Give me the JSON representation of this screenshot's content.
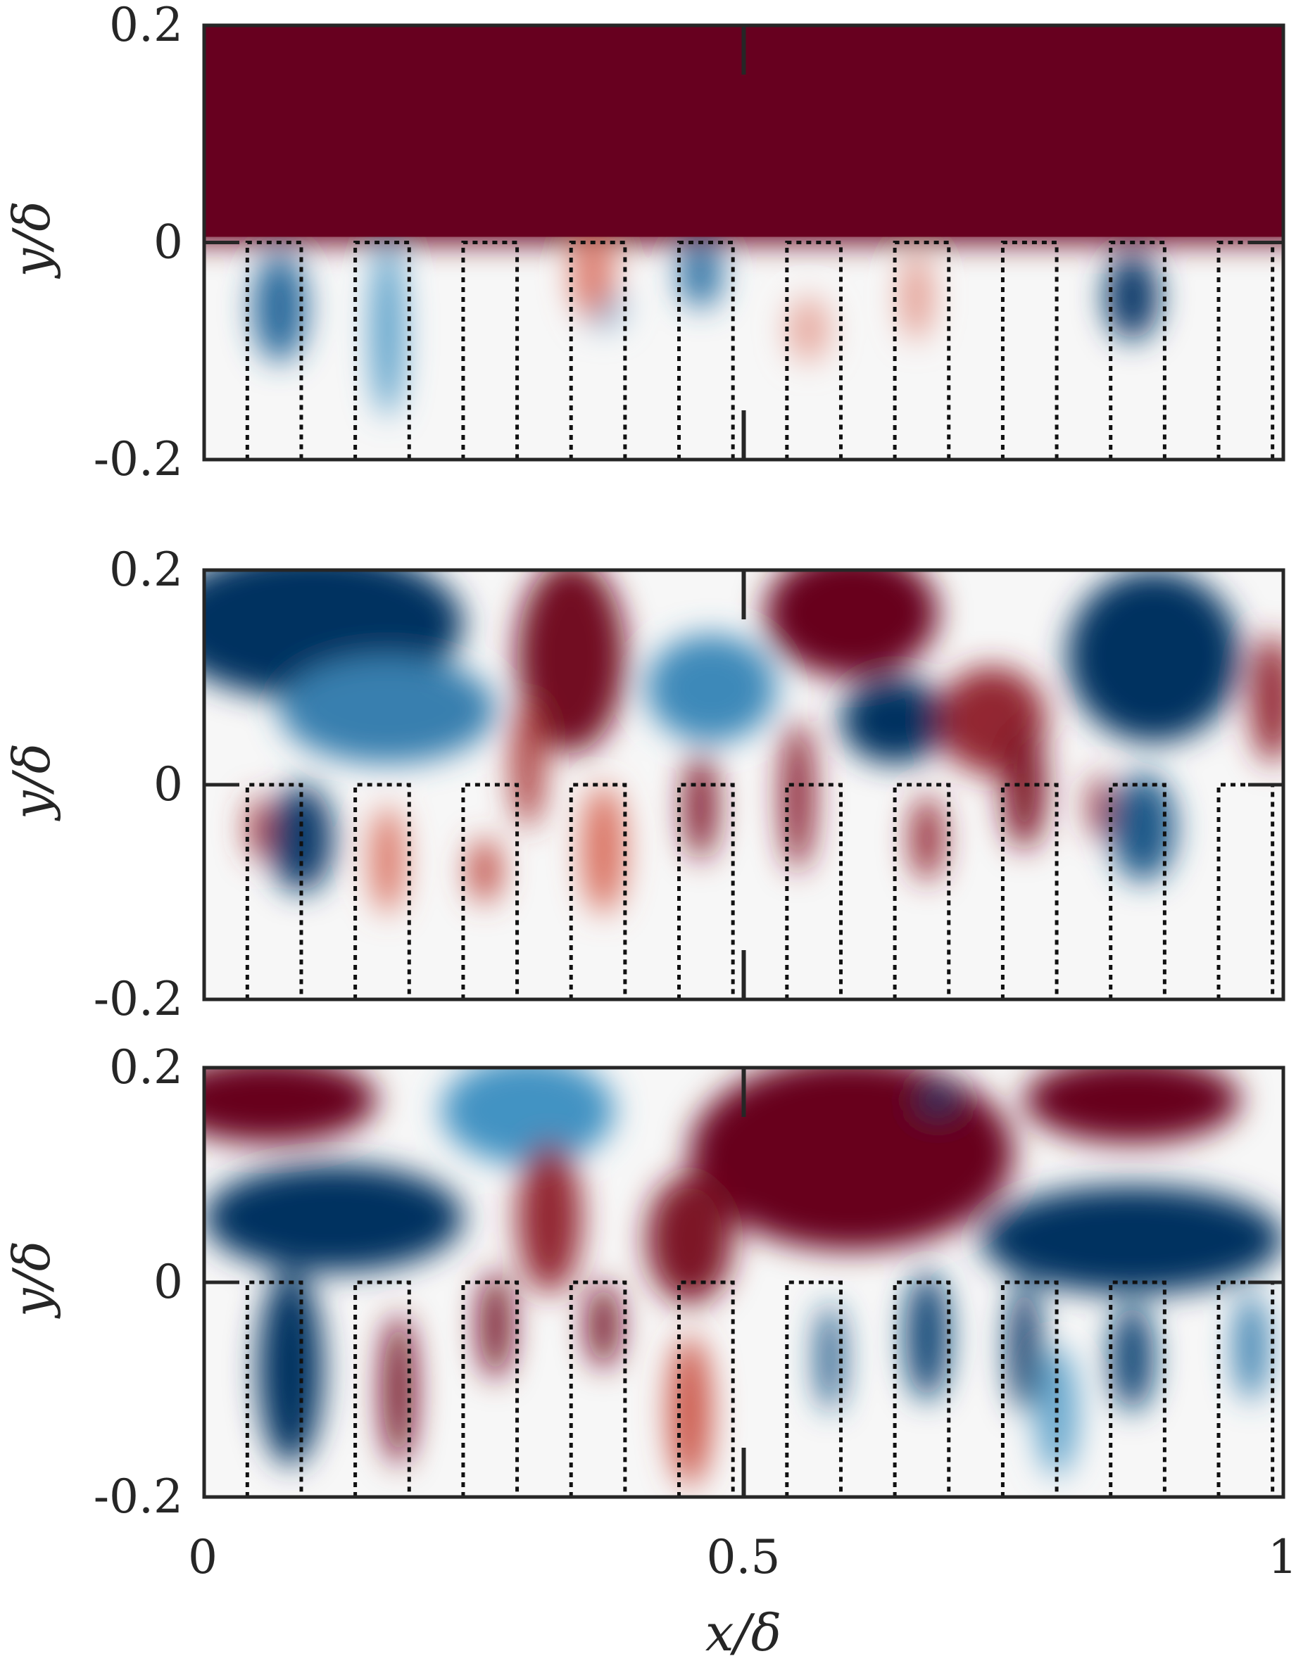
{
  "chart_data": [
    {
      "type": "heatmap",
      "panel": "top",
      "ylabel": "y/δ",
      "xlabel": "",
      "xlim": [
        0,
        1
      ],
      "ylim": [
        -0.2,
        0.2
      ],
      "y_ticks": [
        "0.2",
        "0",
        "-0.2"
      ],
      "x_ticks": [],
      "colormap": "diverging red-blue",
      "field_summary": "uniform strong positive above y=0; near-zero inside grooves with weak negative pockets at x≈0.07, 0.17, 0.46, 0.86",
      "features": [
        {
          "x": 0.0,
          "y": 0.1,
          "rx": 1.0,
          "ry": 0.1,
          "value": 1
        },
        {
          "x": 0.07,
          "y": -0.06,
          "rx": 0.025,
          "ry": 0.05,
          "value": -0.7
        },
        {
          "x": 0.17,
          "y": -0.08,
          "rx": 0.015,
          "ry": 0.08,
          "value": -0.45
        },
        {
          "x": 0.46,
          "y": -0.03,
          "rx": 0.02,
          "ry": 0.03,
          "value": -0.65
        },
        {
          "x": 0.86,
          "y": -0.05,
          "rx": 0.025,
          "ry": 0.04,
          "value": -0.95
        },
        {
          "x": 0.37,
          "y": -0.06,
          "rx": 0.02,
          "ry": 0.02,
          "value": -0.3
        },
        {
          "x": 0.36,
          "y": -0.03,
          "rx": 0.02,
          "ry": 0.04,
          "value": 0.4
        },
        {
          "x": 0.56,
          "y": -0.08,
          "rx": 0.02,
          "ry": 0.03,
          "value": 0.25
        },
        {
          "x": 0.66,
          "y": -0.05,
          "rx": 0.015,
          "ry": 0.04,
          "value": 0.3
        }
      ]
    },
    {
      "type": "heatmap",
      "panel": "middle",
      "ylabel": "y/δ",
      "xlabel": "",
      "xlim": [
        0,
        1
      ],
      "ylim": [
        -0.2,
        0.2
      ],
      "y_ticks": [
        "0.2",
        "0",
        "-0.2"
      ],
      "x_ticks": [],
      "colormap": "diverging red-blue",
      "field_summary": "alternating large-scale positive/negative regions above y=0 with penetrating plumes into the grooves",
      "features": [
        {
          "x": 0.1,
          "y": 0.15,
          "rx": 0.14,
          "ry": 0.07,
          "value": -1
        },
        {
          "x": 0.17,
          "y": 0.07,
          "rx": 0.1,
          "ry": 0.05,
          "value": -0.6
        },
        {
          "x": 0.09,
          "y": -0.05,
          "rx": 0.03,
          "ry": 0.05,
          "value": -0.95
        },
        {
          "x": 0.34,
          "y": 0.12,
          "rx": 0.05,
          "ry": 0.09,
          "value": 0.95
        },
        {
          "x": 0.47,
          "y": 0.09,
          "rx": 0.06,
          "ry": 0.05,
          "value": -0.55
        },
        {
          "x": 0.6,
          "y": 0.16,
          "rx": 0.08,
          "ry": 0.06,
          "value": 1
        },
        {
          "x": 0.64,
          "y": 0.06,
          "rx": 0.05,
          "ry": 0.04,
          "value": -1
        },
        {
          "x": 0.73,
          "y": 0.06,
          "rx": 0.05,
          "ry": 0.05,
          "value": 0.8
        },
        {
          "x": 0.88,
          "y": 0.12,
          "rx": 0.08,
          "ry": 0.08,
          "value": -1
        },
        {
          "x": 0.87,
          "y": -0.04,
          "rx": 0.03,
          "ry": 0.05,
          "value": -0.8
        },
        {
          "x": 0.99,
          "y": 0.08,
          "rx": 0.02,
          "ry": 0.06,
          "value": 0.8
        },
        {
          "x": 0.46,
          "y": -0.02,
          "rx": 0.015,
          "ry": 0.05,
          "value": 0.9
        },
        {
          "x": 0.55,
          "y": -0.01,
          "rx": 0.015,
          "ry": 0.07,
          "value": 0.85
        },
        {
          "x": 0.67,
          "y": -0.05,
          "rx": 0.015,
          "ry": 0.04,
          "value": 0.8
        },
        {
          "x": 0.76,
          "y": 0.0,
          "rx": 0.02,
          "ry": 0.06,
          "value": 0.9
        },
        {
          "x": 0.83,
          "y": -0.02,
          "rx": 0.01,
          "ry": 0.03,
          "value": 0.8
        },
        {
          "x": 0.05,
          "y": -0.04,
          "rx": 0.01,
          "ry": 0.03,
          "value": 0.7
        },
        {
          "x": 0.26,
          "y": -0.08,
          "rx": 0.015,
          "ry": 0.03,
          "value": 0.6
        },
        {
          "x": 0.37,
          "y": -0.06,
          "rx": 0.02,
          "ry": 0.06,
          "value": 0.45
        },
        {
          "x": 0.3,
          "y": 0.02,
          "rx": 0.015,
          "ry": 0.06,
          "value": 0.7
        },
        {
          "x": 0.17,
          "y": -0.07,
          "rx": 0.015,
          "ry": 0.05,
          "value": 0.45
        }
      ]
    },
    {
      "type": "heatmap",
      "panel": "bottom",
      "ylabel": "y/δ",
      "xlabel": "x/δ",
      "xlim": [
        0,
        1
      ],
      "ylim": [
        -0.2,
        0.2
      ],
      "y_ticks": [
        "0.2",
        "0",
        "-0.2"
      ],
      "x_ticks": [
        "0",
        "0.5",
        "1"
      ],
      "colormap": "diverging red-blue",
      "field_summary": "large negative band near y≈0.05 and large positive region at top, with alternating plumes penetrating the grooves",
      "features": [
        {
          "x": 0.06,
          "y": 0.17,
          "rx": 0.1,
          "ry": 0.04,
          "value": 1
        },
        {
          "x": 0.12,
          "y": 0.06,
          "rx": 0.12,
          "ry": 0.05,
          "value": -1
        },
        {
          "x": 0.3,
          "y": 0.16,
          "rx": 0.08,
          "ry": 0.05,
          "value": -0.5
        },
        {
          "x": 0.6,
          "y": 0.12,
          "rx": 0.15,
          "ry": 0.09,
          "value": 1
        },
        {
          "x": 0.68,
          "y": 0.17,
          "rx": 0.02,
          "ry": 0.015,
          "value": -1
        },
        {
          "x": 0.86,
          "y": 0.17,
          "rx": 0.1,
          "ry": 0.04,
          "value": 1
        },
        {
          "x": 0.86,
          "y": 0.04,
          "rx": 0.14,
          "ry": 0.05,
          "value": -1
        },
        {
          "x": 0.32,
          "y": 0.06,
          "rx": 0.03,
          "ry": 0.07,
          "value": 0.8
        },
        {
          "x": 0.45,
          "y": 0.04,
          "rx": 0.04,
          "ry": 0.06,
          "value": 0.9
        },
        {
          "x": 0.08,
          "y": -0.08,
          "rx": 0.03,
          "ry": 0.09,
          "value": -1
        },
        {
          "x": 0.18,
          "y": -0.1,
          "rx": 0.015,
          "ry": 0.07,
          "value": 0.95
        },
        {
          "x": 0.27,
          "y": -0.04,
          "rx": 0.015,
          "ry": 0.05,
          "value": 0.95
        },
        {
          "x": 0.37,
          "y": -0.04,
          "rx": 0.015,
          "ry": 0.04,
          "value": 0.95
        },
        {
          "x": 0.45,
          "y": -0.12,
          "rx": 0.02,
          "ry": 0.07,
          "value": 0.55
        },
        {
          "x": 0.67,
          "y": -0.05,
          "rx": 0.02,
          "ry": 0.06,
          "value": -0.9
        },
        {
          "x": 0.76,
          "y": -0.06,
          "rx": 0.015,
          "ry": 0.06,
          "value": -0.95
        },
        {
          "x": 0.86,
          "y": -0.07,
          "rx": 0.02,
          "ry": 0.05,
          "value": -0.9
        },
        {
          "x": 0.58,
          "y": -0.07,
          "rx": 0.012,
          "ry": 0.05,
          "value": -0.8
        },
        {
          "x": 0.79,
          "y": -0.12,
          "rx": 0.02,
          "ry": 0.06,
          "value": -0.4
        },
        {
          "x": 0.97,
          "y": -0.06,
          "rx": 0.015,
          "ry": 0.05,
          "value": -0.6
        }
      ]
    }
  ],
  "groove_geometry": {
    "units": "x/δ, y/δ",
    "depth_y": -0.2,
    "groove_left_edges": [
      0.04,
      0.14,
      0.24,
      0.34,
      0.44,
      0.54,
      0.64,
      0.74,
      0.84,
      0.94
    ],
    "groove_right_edges": [
      0.09,
      0.19,
      0.29,
      0.39,
      0.49,
      0.59,
      0.69,
      0.79,
      0.89,
      0.99
    ]
  },
  "colors": {
    "strong_positive": "#67001f",
    "mid_positive": "#d6604d",
    "neutral": "#f7f7f7",
    "mid_negative": "#4393c3",
    "strong_negative": "#053061",
    "axes": "#262626"
  }
}
